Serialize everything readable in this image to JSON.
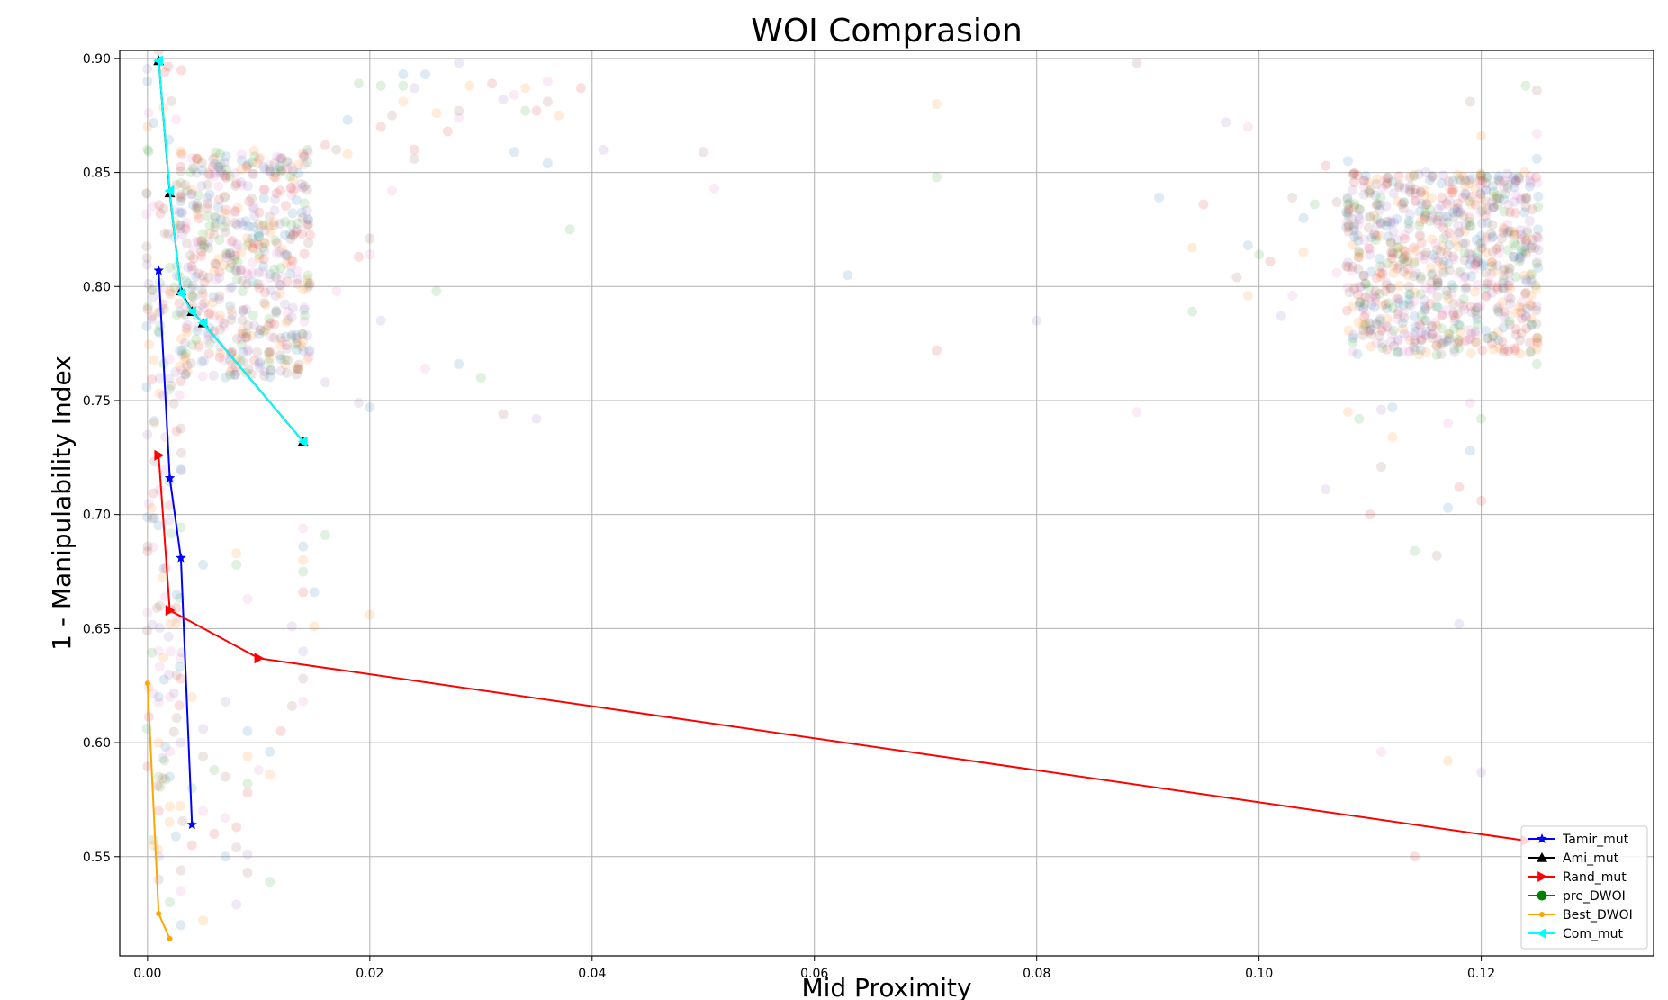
{
  "chart_data": {
    "type": "line",
    "title": "WOI Comprasion",
    "xlabel": "Mid Proximity",
    "ylabel": "1 - Manipulability Index",
    "xlim": [
      -0.0025,
      0.1355
    ],
    "ylim": [
      0.5065,
      0.9035
    ],
    "x_ticks": [
      0.0,
      0.02,
      0.04,
      0.06,
      0.08,
      0.1,
      0.12
    ],
    "x_tick_labels": [
      "0.00",
      "0.02",
      "0.04",
      "0.06",
      "0.08",
      "0.10",
      "0.12"
    ],
    "y_ticks": [
      0.55,
      0.6,
      0.65,
      0.7,
      0.75,
      0.8,
      0.85,
      0.9
    ],
    "y_tick_labels": [
      "0.55",
      "0.60",
      "0.65",
      "0.70",
      "0.75",
      "0.80",
      "0.85",
      "0.90"
    ],
    "grid": true,
    "legend_position": "lower right",
    "series": [
      {
        "name": "Tamir_mut",
        "color": "#0000ff",
        "marker": "star",
        "x": [
          0.001,
          0.002,
          0.003,
          0.004
        ],
        "y": [
          0.807,
          0.716,
          0.681,
          0.564
        ]
      },
      {
        "name": "Ami_mut",
        "color": "#000000",
        "marker": "triangle-up",
        "x": [
          0.001,
          0.002,
          0.003,
          0.004,
          0.005,
          0.014
        ],
        "y": [
          0.899,
          0.841,
          0.798,
          0.789,
          0.784,
          0.732
        ]
      },
      {
        "name": "Rand_mut",
        "color": "#ff0000",
        "marker": "triangle-right",
        "x": [
          0.001,
          0.002,
          0.01,
          0.124
        ],
        "y": [
          0.726,
          0.658,
          0.637,
          0.557
        ]
      },
      {
        "name": "pre_DWOI",
        "color": "#008000",
        "marker": "circle",
        "x": [],
        "y": []
      },
      {
        "name": "Best_DWOI",
        "color": "#ffa500",
        "marker": "point",
        "x": [
          0.0,
          0.001,
          0.002
        ],
        "y": [
          0.626,
          0.525,
          0.514
        ]
      },
      {
        "name": "Com_mut",
        "color": "#00ffff",
        "marker": "triangle-left",
        "x": [
          0.001,
          0.002,
          0.003,
          0.004,
          0.005,
          0.014
        ],
        "y": [
          0.899,
          0.842,
          0.797,
          0.789,
          0.784,
          0.732
        ]
      }
    ],
    "background_scatter": {
      "opacity": 0.15,
      "colors": [
        "#1f77b4",
        "#ff7f0e",
        "#2ca02c",
        "#d62728",
        "#9467bd",
        "#8c564b",
        "#e377c2"
      ],
      "clusters": [
        {
          "x": [
            0.0,
            0.003
          ],
          "y": [
            0.55,
            0.905
          ]
        },
        {
          "x": [
            0.003,
            0.0145
          ],
          "y": [
            0.76,
            0.86
          ]
        },
        {
          "x": [
            0.108,
            0.125
          ],
          "y": [
            0.77,
            0.85
          ]
        }
      ],
      "points": [
        [
          0.0,
          0.89
        ],
        [
          0.0,
          0.87
        ],
        [
          0.0,
          0.86
        ],
        [
          0.0,
          0.79
        ],
        [
          0.0,
          0.735
        ],
        [
          0.0,
          0.686
        ],
        [
          0.0,
          0.657
        ],
        [
          0.001,
          0.62
        ],
        [
          0.001,
          0.6
        ],
        [
          0.001,
          0.585
        ],
        [
          0.001,
          0.57
        ],
        [
          0.001,
          0.55
        ],
        [
          0.001,
          0.54
        ],
        [
          0.002,
          0.62
        ],
        [
          0.002,
          0.585
        ],
        [
          0.002,
          0.572
        ],
        [
          0.002,
          0.53
        ],
        [
          0.003,
          0.628
        ],
        [
          0.003,
          0.6
        ],
        [
          0.003,
          0.544
        ],
        [
          0.003,
          0.535
        ],
        [
          0.003,
          0.52
        ],
        [
          0.004,
          0.62
        ],
        [
          0.004,
          0.58
        ],
        [
          0.004,
          0.555
        ],
        [
          0.005,
          0.606
        ],
        [
          0.005,
          0.594
        ],
        [
          0.005,
          0.57
        ],
        [
          0.005,
          0.678
        ],
        [
          0.005,
          0.522
        ],
        [
          0.006,
          0.588
        ],
        [
          0.006,
          0.56
        ],
        [
          0.007,
          0.618
        ],
        [
          0.007,
          0.585
        ],
        [
          0.007,
          0.567
        ],
        [
          0.007,
          0.55
        ],
        [
          0.008,
          0.683
        ],
        [
          0.008,
          0.678
        ],
        [
          0.008,
          0.563
        ],
        [
          0.008,
          0.529
        ],
        [
          0.008,
          0.554
        ],
        [
          0.009,
          0.663
        ],
        [
          0.009,
          0.605
        ],
        [
          0.009,
          0.594
        ],
        [
          0.009,
          0.582
        ],
        [
          0.009,
          0.578
        ],
        [
          0.009,
          0.551
        ],
        [
          0.009,
          0.543
        ],
        [
          0.01,
          0.588
        ],
        [
          0.011,
          0.596
        ],
        [
          0.011,
          0.586
        ],
        [
          0.011,
          0.539
        ],
        [
          0.012,
          0.605
        ],
        [
          0.013,
          0.651
        ],
        [
          0.013,
          0.616
        ],
        [
          0.014,
          0.694
        ],
        [
          0.014,
          0.686
        ],
        [
          0.014,
          0.68
        ],
        [
          0.014,
          0.675
        ],
        [
          0.014,
          0.666
        ],
        [
          0.014,
          0.64
        ],
        [
          0.014,
          0.628
        ],
        [
          0.014,
          0.618
        ],
        [
          0.015,
          0.666
        ],
        [
          0.015,
          0.651
        ],
        [
          0.016,
          0.691
        ],
        [
          0.016,
          0.862
        ],
        [
          0.016,
          0.758
        ],
        [
          0.017,
          0.86
        ],
        [
          0.017,
          0.798
        ],
        [
          0.018,
          0.873
        ],
        [
          0.018,
          0.858
        ],
        [
          0.019,
          0.889
        ],
        [
          0.019,
          0.813
        ],
        [
          0.019,
          0.749
        ],
        [
          0.02,
          0.821
        ],
        [
          0.02,
          0.814
        ],
        [
          0.02,
          0.747
        ],
        [
          0.02,
          0.656
        ],
        [
          0.021,
          0.888
        ],
        [
          0.021,
          0.87
        ],
        [
          0.021,
          0.785
        ],
        [
          0.022,
          0.875
        ],
        [
          0.022,
          0.842
        ],
        [
          0.023,
          0.893
        ],
        [
          0.023,
          0.881
        ],
        [
          0.023,
          0.888
        ],
        [
          0.024,
          0.86
        ],
        [
          0.024,
          0.887
        ],
        [
          0.024,
          0.856
        ],
        [
          0.025,
          0.764
        ],
        [
          0.025,
          0.893
        ],
        [
          0.026,
          0.876
        ],
        [
          0.026,
          0.798
        ],
        [
          0.027,
          0.868
        ],
        [
          0.028,
          0.898
        ],
        [
          0.028,
          0.877
        ],
        [
          0.028,
          0.874
        ],
        [
          0.028,
          0.766
        ],
        [
          0.029,
          0.888
        ],
        [
          0.03,
          0.76
        ],
        [
          0.031,
          0.889
        ],
        [
          0.032,
          0.882
        ],
        [
          0.032,
          0.744
        ],
        [
          0.033,
          0.884
        ],
        [
          0.033,
          0.859
        ],
        [
          0.034,
          0.887
        ],
        [
          0.034,
          0.877
        ],
        [
          0.035,
          0.877
        ],
        [
          0.035,
          0.742
        ],
        [
          0.036,
          0.881
        ],
        [
          0.036,
          0.89
        ],
        [
          0.036,
          0.854
        ],
        [
          0.037,
          0.875
        ],
        [
          0.038,
          0.825
        ],
        [
          0.039,
          0.887
        ],
        [
          0.041,
          0.86
        ],
        [
          0.05,
          0.859
        ],
        [
          0.051,
          0.843
        ],
        [
          0.063,
          0.805
        ],
        [
          0.071,
          0.88
        ],
        [
          0.071,
          0.848
        ],
        [
          0.071,
          0.772
        ],
        [
          0.08,
          0.785
        ],
        [
          0.089,
          0.898
        ],
        [
          0.089,
          0.745
        ],
        [
          0.091,
          0.839
        ],
        [
          0.094,
          0.817
        ],
        [
          0.094,
          0.789
        ],
        [
          0.095,
          0.836
        ],
        [
          0.097,
          0.872
        ],
        [
          0.098,
          0.804
        ],
        [
          0.099,
          0.87
        ],
        [
          0.099,
          0.818
        ],
        [
          0.099,
          0.796
        ],
        [
          0.1,
          0.814
        ],
        [
          0.101,
          0.811
        ],
        [
          0.102,
          0.787
        ],
        [
          0.103,
          0.839
        ],
        [
          0.103,
          0.796
        ],
        [
          0.104,
          0.83
        ],
        [
          0.104,
          0.815
        ],
        [
          0.105,
          0.836
        ],
        [
          0.106,
          0.853
        ],
        [
          0.106,
          0.711
        ],
        [
          0.107,
          0.837
        ],
        [
          0.107,
          0.806
        ],
        [
          0.108,
          0.855
        ],
        [
          0.108,
          0.745
        ],
        [
          0.109,
          0.742
        ],
        [
          0.11,
          0.7
        ],
        [
          0.111,
          0.746
        ],
        [
          0.111,
          0.721
        ],
        [
          0.111,
          0.596
        ],
        [
          0.112,
          0.747
        ],
        [
          0.112,
          0.734
        ],
        [
          0.114,
          0.684
        ],
        [
          0.114,
          0.55
        ],
        [
          0.115,
          0.85
        ],
        [
          0.116,
          0.682
        ],
        [
          0.117,
          0.74
        ],
        [
          0.117,
          0.703
        ],
        [
          0.117,
          0.592
        ],
        [
          0.118,
          0.773
        ],
        [
          0.118,
          0.712
        ],
        [
          0.118,
          0.652
        ],
        [
          0.119,
          0.881
        ],
        [
          0.119,
          0.749
        ],
        [
          0.119,
          0.728
        ],
        [
          0.12,
          0.866
        ],
        [
          0.12,
          0.742
        ],
        [
          0.12,
          0.706
        ],
        [
          0.12,
          0.587
        ],
        [
          0.121,
          0.827
        ],
        [
          0.122,
          0.843
        ],
        [
          0.122,
          0.782
        ],
        [
          0.123,
          0.823
        ],
        [
          0.124,
          0.888
        ],
        [
          0.124,
          0.839
        ],
        [
          0.124,
          0.787
        ],
        [
          0.125,
          0.886
        ],
        [
          0.125,
          0.867
        ],
        [
          0.125,
          0.856
        ],
        [
          0.125,
          0.776
        ],
        [
          0.125,
          0.766
        ]
      ]
    }
  }
}
